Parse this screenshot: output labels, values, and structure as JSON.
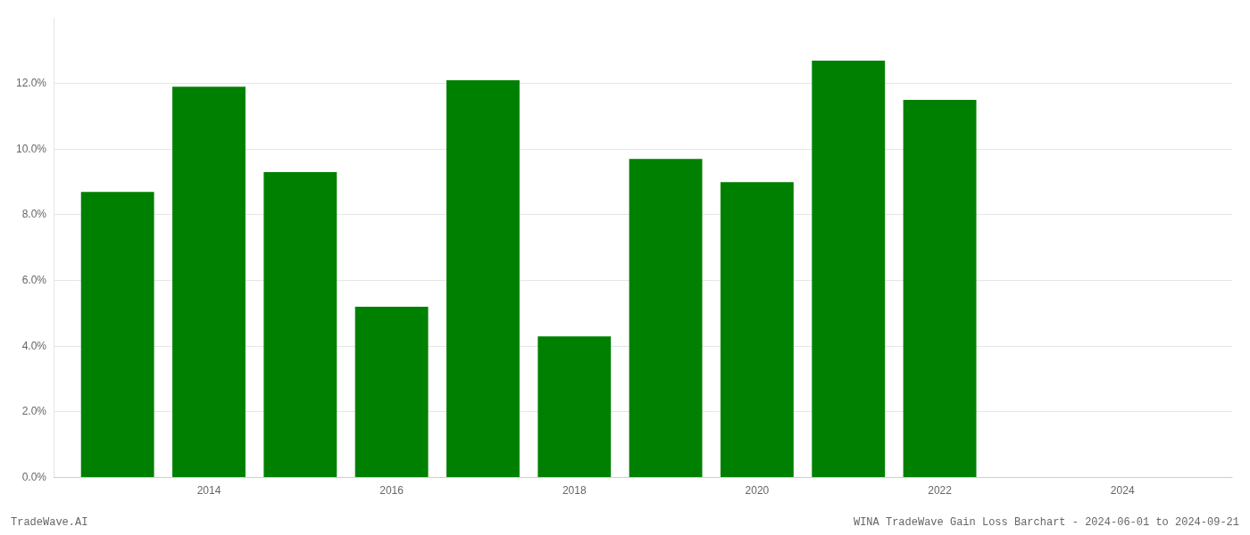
{
  "chart_data": {
    "type": "bar",
    "x": [
      2013,
      2014,
      2015,
      2016,
      2017,
      2018,
      2019,
      2020,
      2021,
      2022
    ],
    "values": [
      0.087,
      0.119,
      0.093,
      0.052,
      0.121,
      0.043,
      0.097,
      0.09,
      0.127,
      0.115
    ],
    "color": "#008000",
    "xlim": [
      2012.3,
      2025.2
    ],
    "xticks": [
      2014,
      2016,
      2018,
      2020,
      2022,
      2024
    ],
    "ylim": [
      0,
      0.14
    ],
    "yticks": [
      {
        "value": 0.0,
        "label": "0.0%"
      },
      {
        "value": 0.02,
        "label": "2.0%"
      },
      {
        "value": 0.04,
        "label": "4.0%"
      },
      {
        "value": 0.06,
        "label": "6.0%"
      },
      {
        "value": 0.08,
        "label": "8.0%"
      },
      {
        "value": 0.1,
        "label": "10.0%"
      },
      {
        "value": 0.12,
        "label": "12.0%"
      }
    ],
    "grid": "y",
    "annotations": [
      "TradeWave.AI",
      "WINA TradeWave Gain Loss Barchart - 2024-06-01 to 2024-09-21"
    ]
  }
}
